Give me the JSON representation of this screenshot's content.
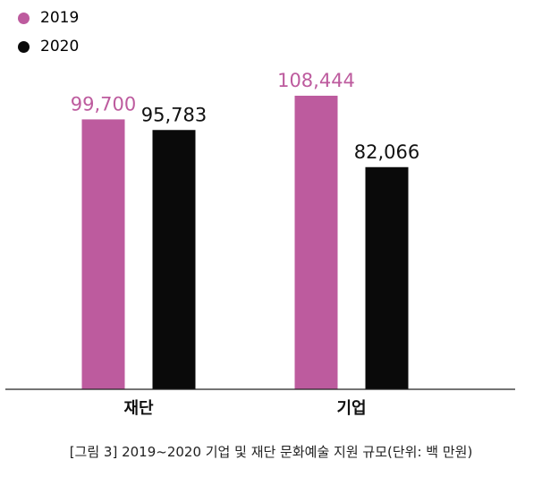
{
  "chart_data": {
    "type": "bar",
    "categories": [
      "재단",
      "기업"
    ],
    "series": [
      {
        "name": "2019",
        "color": "#bd5b9e",
        "values": [
          99700,
          108444
        ],
        "value_labels": [
          "99,700",
          "108,444"
        ]
      },
      {
        "name": "2020",
        "color": "#0a0a0a",
        "values": [
          95783,
          82066
        ],
        "value_labels": [
          "95,783",
          "82,066"
        ]
      }
    ],
    "ylim": [
      0,
      120000
    ],
    "legend": "top-left",
    "grid": false
  },
  "caption": "[그림 3] 2019~2020 기업 및 재단 문화예술 지원 규모(단위: 백 만원)"
}
